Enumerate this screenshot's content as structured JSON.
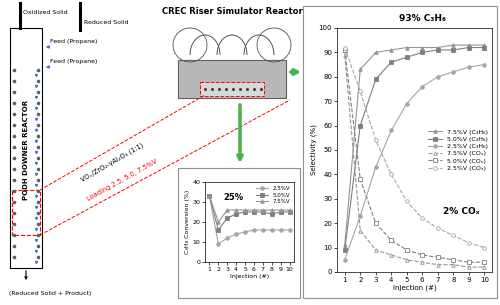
{
  "diagram": {
    "downer": {
      "label": "PODH DOWNER REACTOR",
      "solid_in": "Oxidized Solid",
      "solid_out": "Reduced Solid",
      "feeds": [
        "Feed (Propane)",
        "Feed (Propane)"
      ],
      "outlet": "(Reduced Solid + Product)"
    },
    "reactor": {
      "title": "CREC Riser Simulator Reactor"
    },
    "catalyst": {
      "name": "VOₓ/ZrO₂-γAl₂O₃ (1:1)",
      "loading": "Loading 2.5, 5.0, 7.5%V"
    }
  },
  "chart_data": [
    {
      "type": "line",
      "x": [
        1,
        2,
        3,
        4,
        5,
        6,
        7,
        8,
        9,
        10
      ],
      "xlabel": "Injection (#)",
      "ylabel": "C₃H₈ Conversion (%)",
      "xlim": [
        0.5,
        10.5
      ],
      "xticks": [
        1,
        2,
        3,
        4,
        5,
        6,
        7,
        8,
        9,
        10
      ],
      "ylim": [
        0,
        40
      ],
      "yticks": [
        0,
        10,
        20,
        30,
        40
      ],
      "grid": false,
      "legend": "upper right",
      "annotations": [
        "25%"
      ],
      "series": [
        {
          "name": "2.5%V",
          "color": "#a6a6a6",
          "marker": "circle",
          "line_style": "solid",
          "values": [
            33,
            9,
            12,
            14,
            15,
            16,
            16,
            16,
            16,
            16
          ]
        },
        {
          "name": "5.0%V",
          "color": "#7f7f7f",
          "marker": "square",
          "line_style": "solid",
          "values": [
            33,
            16,
            22,
            24,
            25,
            25,
            25,
            24,
            25,
            25
          ]
        },
        {
          "name": "7.5%V",
          "color": "#959595",
          "marker": "triangle",
          "line_style": "solid",
          "values": [
            33,
            20,
            26,
            26,
            26,
            26,
            26,
            26,
            26,
            26
          ]
        }
      ]
    },
    {
      "type": "line",
      "x": [
        1,
        2,
        3,
        4,
        5,
        6,
        7,
        8,
        9,
        10
      ],
      "xlabel": "Injection (#)",
      "ylabel": "Selectivity (%)",
      "xlim": [
        0.5,
        10.5
      ],
      "xticks": [
        1,
        2,
        3,
        4,
        5,
        6,
        7,
        8,
        9,
        10
      ],
      "ylim": [
        0,
        100
      ],
      "yticks": [
        0,
        10,
        20,
        30,
        40,
        50,
        60,
        70,
        80,
        90,
        100
      ],
      "grid": false,
      "legend": "center right",
      "annotations": [
        "93% C₃H₆",
        "2% COₓ"
      ],
      "series": [
        {
          "name": "7.5%V (C₃H₆)",
          "color": "#959595",
          "marker": "triangle",
          "line_style": "solid",
          "values": [
            11,
            83,
            90,
            91,
            92,
            92,
            92,
            93,
            93,
            93
          ]
        },
        {
          "name": "5.0%V (C₃H₆)",
          "color": "#7f7f7f",
          "marker": "square",
          "line_style": "solid",
          "values": [
            9,
            60,
            79,
            86,
            88,
            90,
            91,
            91,
            92,
            92
          ]
        },
        {
          "name": "2.5%V (C₃H₆)",
          "color": "#a6a6a6",
          "marker": "circle",
          "line_style": "solid",
          "values": [
            5,
            23,
            43,
            58,
            69,
            76,
            80,
            82,
            84,
            85
          ]
        },
        {
          "name": "7.5%V (COₓ)",
          "color": "#959595",
          "marker": "triangle",
          "line_style": "dashed",
          "values": [
            89,
            17,
            9,
            7,
            5,
            4,
            3,
            3,
            2,
            2
          ]
        },
        {
          "name": "5.0%V (COₓ)",
          "color": "#7f7f7f",
          "marker": "square",
          "line_style": "dashed",
          "values": [
            91,
            38,
            20,
            13,
            9,
            7,
            6,
            5,
            4,
            4
          ]
        },
        {
          "name": "2.5%V (COₓ)",
          "color": "#a6a6a6",
          "marker": "circle",
          "line_style": "dashed",
          "values": [
            92,
            74,
            54,
            40,
            29,
            22,
            18,
            15,
            12,
            10
          ]
        }
      ]
    }
  ]
}
